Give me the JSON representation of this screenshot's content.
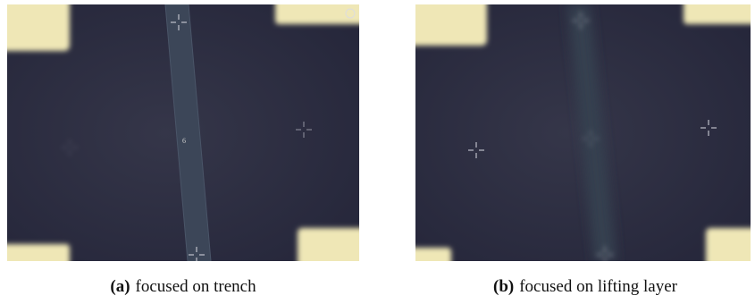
{
  "figure": {
    "subfigures": [
      {
        "label": "(a)",
        "caption": "focused on trench",
        "marker_label": "6"
      },
      {
        "label": "(b)",
        "caption": "focused on lifting layer"
      }
    ]
  }
}
